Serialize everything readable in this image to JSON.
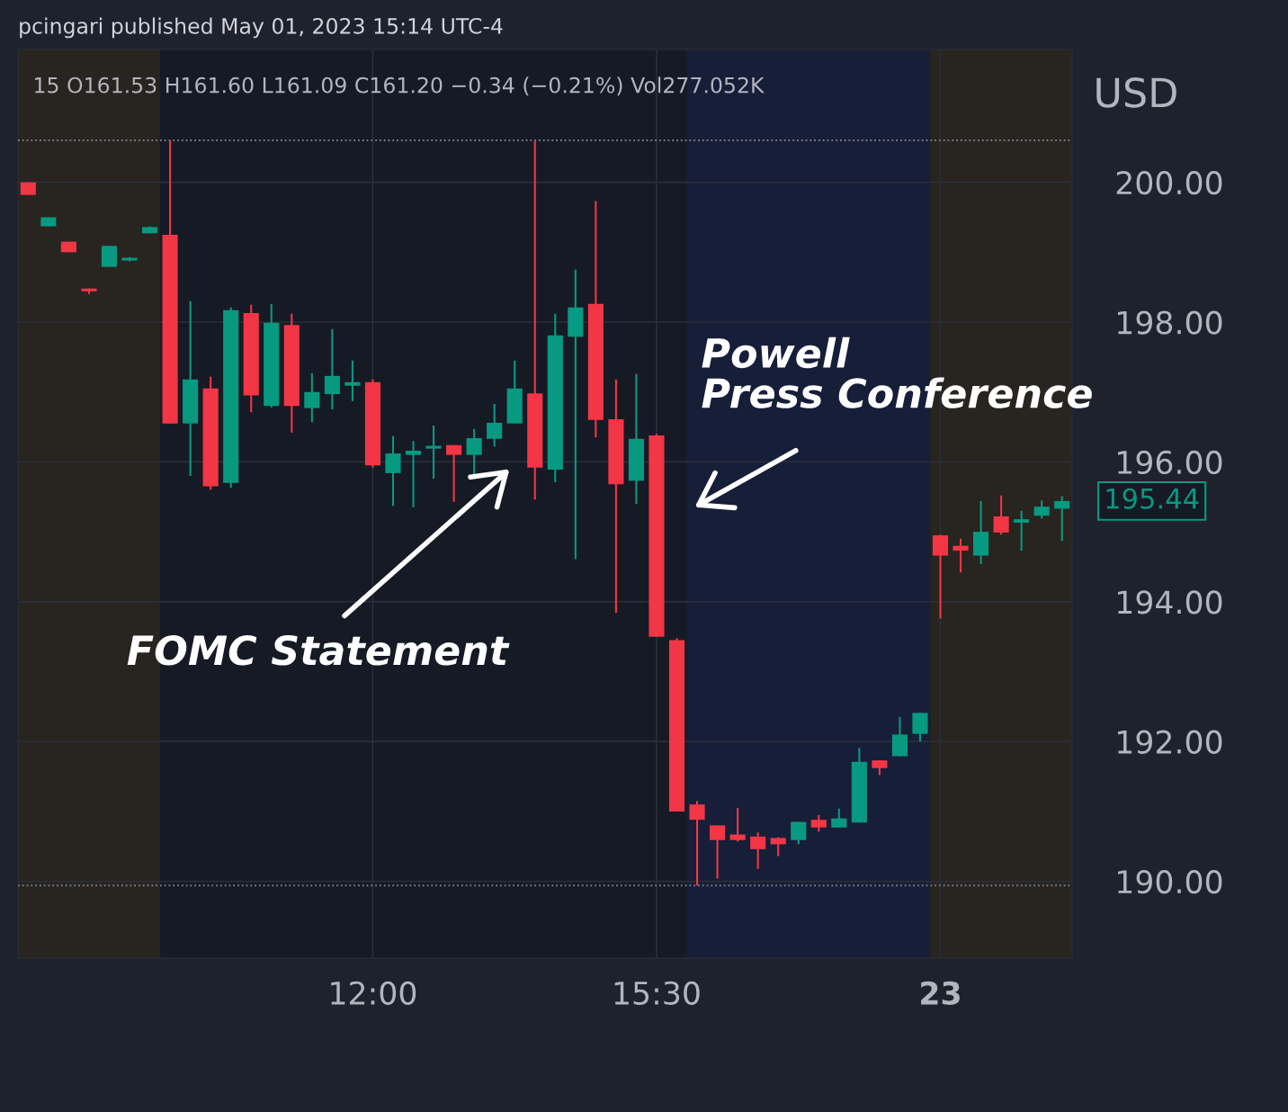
{
  "chart_data": {
    "type": "candlestick",
    "title": "pcingari published May 01, 2023 15:14 UTC-4",
    "subtitle": "15 O161.53 H161.60 L161.09 C161.20 −0.34 (−0.21%) Vol277.052K",
    "ylabel": "USD",
    "annotations": [
      "FOMC Statement",
      "Powell\nPress Conference",
      "195.44"
    ],
    "categories": [
      null,
      null,
      null,
      null,
      null,
      null,
      null,
      null,
      null,
      null,
      null,
      null,
      null,
      null,
      null,
      null,
      null,
      "12:00",
      null,
      null,
      null,
      null,
      null,
      null,
      null,
      null,
      null,
      null,
      null,
      null,
      null,
      "15:30",
      null,
      null,
      null,
      null,
      null,
      null,
      null,
      null,
      null,
      null,
      null,
      null,
      null,
      "23",
      null,
      null,
      null,
      null,
      null,
      null
    ],
    "ohlc": [
      [
        200.0,
        200.0,
        199.82,
        199.82
      ],
      [
        199.37,
        199.5,
        199.37,
        199.5
      ],
      [
        199.15,
        199.15,
        199.0,
        199.0
      ],
      [
        198.48,
        198.48,
        198.4,
        198.44
      ],
      [
        198.79,
        199.09,
        198.79,
        199.09
      ],
      [
        198.88,
        198.93,
        198.87,
        198.92
      ],
      [
        199.27,
        199.37,
        199.27,
        199.36
      ],
      [
        199.25,
        200.6,
        196.55,
        196.55
      ],
      [
        196.55,
        198.3,
        195.8,
        197.18
      ],
      [
        197.05,
        197.22,
        195.6,
        195.65
      ],
      [
        195.7,
        198.21,
        195.63,
        198.17
      ],
      [
        198.13,
        198.25,
        196.71,
        196.95
      ],
      [
        196.8,
        198.26,
        196.78,
        197.99
      ],
      [
        197.96,
        198.12,
        196.42,
        196.8
      ],
      [
        196.77,
        197.27,
        196.57,
        197.0
      ],
      [
        196.97,
        197.9,
        196.75,
        197.23
      ],
      [
        197.09,
        197.45,
        196.87,
        197.14
      ],
      [
        197.14,
        197.18,
        195.92,
        195.95
      ],
      [
        195.84,
        196.37,
        195.37,
        196.12
      ],
      [
        196.1,
        196.3,
        195.35,
        196.16
      ],
      [
        196.19,
        196.52,
        195.76,
        196.23
      ],
      [
        196.24,
        196.24,
        195.43,
        196.1
      ],
      [
        196.1,
        196.47,
        195.8,
        196.34
      ],
      [
        196.33,
        196.83,
        196.22,
        196.56
      ],
      [
        196.55,
        197.45,
        196.55,
        197.05
      ],
      [
        196.98,
        200.59,
        195.46,
        195.92
      ],
      [
        195.89,
        198.12,
        195.71,
        197.81
      ],
      [
        197.79,
        198.75,
        194.61,
        198.21
      ],
      [
        198.26,
        199.73,
        196.35,
        196.6
      ],
      [
        196.61,
        197.18,
        193.84,
        195.68
      ],
      [
        195.73,
        197.26,
        195.4,
        196.33
      ],
      [
        196.38,
        196.4,
        193.5,
        193.5
      ],
      [
        193.45,
        193.48,
        191.0,
        191.0
      ],
      [
        191.1,
        191.15,
        189.94,
        190.88
      ],
      [
        190.8,
        190.8,
        190.04,
        190.59
      ],
      [
        190.67,
        191.05,
        190.57,
        190.59
      ],
      [
        190.64,
        190.7,
        190.18,
        190.46
      ],
      [
        190.62,
        190.63,
        190.36,
        190.53
      ],
      [
        190.59,
        190.85,
        190.53,
        190.85
      ],
      [
        190.88,
        190.95,
        190.71,
        190.77
      ],
      [
        190.77,
        191.04,
        190.77,
        190.9
      ],
      [
        190.84,
        191.91,
        190.84,
        191.71
      ],
      [
        191.73,
        191.73,
        191.52,
        191.62
      ],
      [
        191.79,
        192.35,
        191.79,
        192.1
      ],
      [
        192.11,
        192.41,
        192.0,
        192.41
      ],
      [
        194.95,
        194.96,
        193.76,
        194.66
      ],
      [
        194.8,
        194.9,
        194.42,
        194.73
      ],
      [
        194.66,
        195.44,
        194.54,
        195.0
      ],
      [
        195.22,
        195.52,
        194.96,
        194.99
      ],
      [
        195.13,
        195.3,
        194.73,
        195.18
      ],
      [
        195.23,
        195.45,
        195.19,
        195.36
      ],
      [
        195.33,
        195.51,
        194.87,
        195.44
      ]
    ],
    "colors": [
      "#f23645",
      "#089981",
      "#f23645",
      "#f23645",
      "#089981",
      "#089981",
      "#089981",
      "#f23645",
      "#089981",
      "#f23645",
      "#089981",
      "#f23645",
      "#089981",
      "#f23645",
      "#089981",
      "#089981",
      "#089981",
      "#f23645",
      "#089981",
      "#089981",
      "#089981",
      "#f23645",
      "#089981",
      "#089981",
      "#089981",
      "#f23645",
      "#089981",
      "#089981",
      "#f23645",
      "#f23645",
      "#089981",
      "#f23645",
      "#f23645",
      "#f23645",
      "#f23645",
      "#f23645",
      "#f23645",
      "#f23645",
      "#089981",
      "#f23645",
      "#089981",
      "#089981",
      "#f23645",
      "#089981",
      "#089981",
      "#f23645",
      "#f23645",
      "#089981",
      "#f23645",
      "#089981",
      "#089981",
      "#089981"
    ],
    "ylim": [
      188.9,
      201.9
    ],
    "yticks": [
      {
        "value": 190,
        "label": "190.00"
      },
      {
        "value": 192,
        "label": "192.00"
      },
      {
        "value": 194,
        "label": "194.00"
      },
      {
        "value": 196,
        "label": "196.00"
      },
      {
        "value": 198,
        "label": "198.00"
      },
      {
        "value": 200,
        "label": "200.00"
      }
    ],
    "grid": true,
    "ref_lines": [
      {
        "axis": "y",
        "value": 200.6,
        "label": null,
        "color": "#787b86",
        "line_style": "dotted"
      },
      {
        "axis": "y",
        "value": 189.94,
        "label": null,
        "color": "#787b86",
        "line_style": "dotted"
      }
    ]
  }
}
